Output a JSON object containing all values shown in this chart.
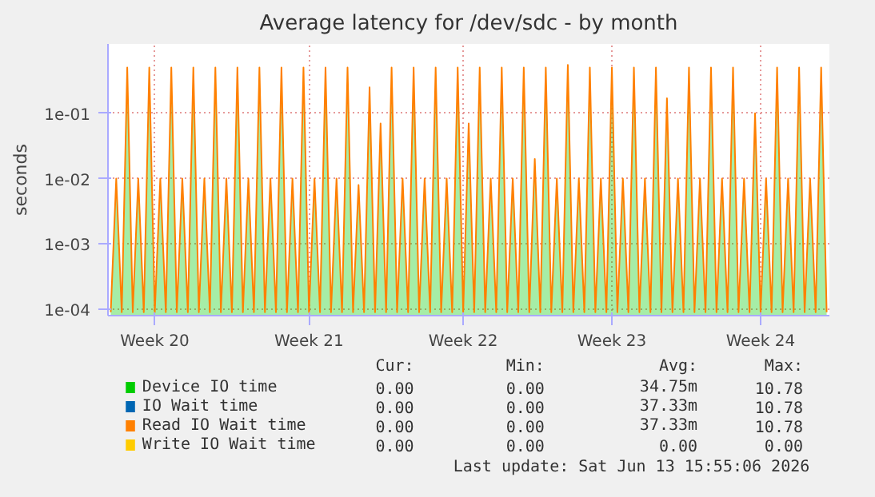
{
  "chart_data": {
    "type": "line",
    "title": "Average latency for /dev/sdc - by month",
    "ylabel": "seconds",
    "log": "y",
    "grid": true,
    "legend": "bottom",
    "line_style": "solid",
    "categories": [
      null,
      null,
      null,
      null,
      null,
      null,
      null,
      null,
      "Week 20",
      null,
      null,
      null,
      null,
      null,
      null,
      null,
      null,
      null,
      null,
      null,
      null,
      null,
      null,
      null,
      null,
      null,
      null,
      null,
      null,
      null,
      null,
      null,
      null,
      null,
      null,
      null,
      "Week 21",
      null,
      null,
      null,
      null,
      null,
      null,
      null,
      null,
      null,
      null,
      null,
      null,
      null,
      null,
      null,
      null,
      null,
      null,
      null,
      null,
      null,
      null,
      null,
      null,
      null,
      null,
      null,
      "Week 22",
      null,
      null,
      null,
      null,
      null,
      null,
      null,
      null,
      null,
      null,
      null,
      null,
      null,
      null,
      null,
      null,
      null,
      null,
      null,
      null,
      null,
      null,
      null,
      null,
      null,
      null,
      "Week 23",
      null,
      null,
      null,
      null,
      null,
      null,
      null,
      null,
      null,
      null,
      null,
      null,
      null,
      null,
      null,
      null,
      null,
      null,
      null,
      null,
      null,
      null,
      null,
      null,
      null,
      null,
      "Week 24",
      null,
      null,
      null,
      null,
      null,
      null,
      null,
      null,
      null,
      null,
      null,
      null
    ],
    "ylim": [
      8e-05,
      1.15
    ],
    "yticks": [
      {
        "value": 0.0001,
        "label": "1e-04"
      },
      {
        "value": 0.001,
        "label": "1e-03"
      },
      {
        "value": 0.01,
        "label": "1e-02"
      },
      {
        "value": 0.1,
        "label": "1e-01"
      }
    ],
    "series": [
      {
        "name": "Device IO time",
        "color": "#00cc00",
        "type": "area",
        "values": [
          9e-05,
          0.01,
          9e-05,
          0.5,
          9e-05,
          0.01,
          9e-05,
          0.5,
          9e-05,
          0.01,
          9e-05,
          0.5,
          9e-05,
          0.01,
          9e-05,
          0.5,
          9e-05,
          0.01,
          9e-05,
          0.5,
          9e-05,
          0.01,
          9e-05,
          0.5,
          9e-05,
          0.01,
          9e-05,
          0.5,
          9e-05,
          0.01,
          9e-05,
          0.5,
          9e-05,
          0.01,
          9e-05,
          0.5,
          9e-05,
          0.01,
          9e-05,
          0.5,
          9e-05,
          0.01,
          9e-05,
          0.5,
          9e-05,
          0.008,
          9e-05,
          0.25,
          9e-05,
          0.07,
          9e-05,
          0.5,
          9e-05,
          0.01,
          9e-05,
          0.5,
          9e-05,
          0.01,
          9e-05,
          0.5,
          9e-05,
          0.01,
          9e-05,
          0.5,
          9e-05,
          0.07,
          9e-05,
          0.5,
          9e-05,
          0.01,
          9e-05,
          0.5,
          9e-05,
          0.01,
          9e-05,
          0.5,
          9e-05,
          0.02,
          9e-05,
          0.5,
          9e-05,
          0.01,
          9e-05,
          0.55,
          9e-05,
          0.01,
          9e-05,
          0.5,
          9e-05,
          0.01,
          9e-05,
          0.5,
          9e-05,
          0.01,
          9e-05,
          0.5,
          9e-05,
          0.01,
          9e-05,
          0.5,
          9e-05,
          0.17,
          9e-05,
          0.01,
          9e-05,
          0.5,
          9e-05,
          0.01,
          9e-05,
          0.5,
          9e-05,
          0.01,
          9e-05,
          0.5,
          9e-05,
          0.01,
          9e-05,
          0.1,
          9e-05,
          0.01,
          9e-05,
          0.5,
          9e-05,
          0.01,
          9e-05,
          0.5,
          9e-05,
          0.01,
          9e-05,
          0.5,
          9e-05
        ]
      },
      {
        "name": "IO Wait time",
        "color": "#0066b3",
        "values": [
          null,
          null,
          null,
          null,
          null,
          null,
          null,
          null,
          null,
          null,
          null,
          null,
          null,
          null,
          null,
          null,
          null,
          null,
          null,
          null,
          null,
          null,
          null,
          null,
          null,
          null,
          null,
          null,
          null,
          null,
          null,
          null,
          null,
          null,
          null,
          null,
          null,
          null,
          null,
          null,
          null,
          null,
          null,
          null,
          null,
          null,
          null,
          null,
          null,
          null,
          null,
          null,
          null,
          null,
          null,
          null,
          null,
          null,
          null,
          null,
          null,
          null,
          null,
          null,
          null,
          null,
          null,
          null,
          null,
          null,
          null,
          null,
          null,
          null,
          null,
          null,
          null,
          null,
          null,
          null,
          null,
          null,
          null,
          null,
          null,
          null,
          null,
          null,
          null,
          null,
          null,
          null,
          null,
          null,
          null,
          null,
          null,
          null,
          null,
          null,
          null,
          null,
          null,
          null,
          null,
          null,
          null,
          null,
          null,
          null,
          null,
          null,
          null,
          null,
          null,
          null,
          null,
          null,
          null,
          null,
          null,
          null,
          null,
          null,
          null,
          null,
          null,
          null,
          null,
          null,
          null
        ]
      },
      {
        "name": "Read IO Wait time",
        "color": "#ff8000",
        "values": [
          9e-05,
          0.01,
          9e-05,
          0.5,
          9e-05,
          0.01,
          9e-05,
          0.5,
          9e-05,
          0.01,
          9e-05,
          0.5,
          9e-05,
          0.01,
          9e-05,
          0.5,
          9e-05,
          0.01,
          9e-05,
          0.5,
          9e-05,
          0.01,
          9e-05,
          0.5,
          9e-05,
          0.01,
          9e-05,
          0.5,
          9e-05,
          0.01,
          9e-05,
          0.5,
          9e-05,
          0.01,
          9e-05,
          0.5,
          9e-05,
          0.01,
          9e-05,
          0.5,
          9e-05,
          0.01,
          9e-05,
          0.5,
          9e-05,
          0.008,
          9e-05,
          0.25,
          9e-05,
          0.07,
          9e-05,
          0.5,
          9e-05,
          0.01,
          9e-05,
          0.5,
          9e-05,
          0.01,
          9e-05,
          0.5,
          9e-05,
          0.01,
          9e-05,
          0.5,
          9e-05,
          0.07,
          9e-05,
          0.5,
          9e-05,
          0.01,
          9e-05,
          0.5,
          9e-05,
          0.01,
          9e-05,
          0.5,
          9e-05,
          0.02,
          9e-05,
          0.5,
          9e-05,
          0.01,
          9e-05,
          0.55,
          9e-05,
          0.01,
          9e-05,
          0.5,
          9e-05,
          0.01,
          9e-05,
          0.5,
          9e-05,
          0.01,
          9e-05,
          0.5,
          9e-05,
          0.01,
          9e-05,
          0.5,
          9e-05,
          0.17,
          9e-05,
          0.01,
          9e-05,
          0.5,
          9e-05,
          0.01,
          9e-05,
          0.5,
          9e-05,
          0.01,
          9e-05,
          0.5,
          9e-05,
          0.01,
          9e-05,
          0.1,
          9e-05,
          0.01,
          9e-05,
          0.5,
          9e-05,
          0.01,
          9e-05,
          0.5,
          9e-05,
          0.01,
          9e-05,
          0.5,
          9e-05
        ]
      },
      {
        "name": "Write IO Wait time",
        "color": "#ffcc00",
        "values": [
          null,
          null,
          null,
          null,
          null,
          null,
          null,
          null,
          null,
          null,
          null,
          null,
          null,
          null,
          null,
          null,
          null,
          null,
          null,
          null,
          null,
          null,
          null,
          null,
          null,
          null,
          null,
          null,
          null,
          null,
          null,
          null,
          null,
          null,
          null,
          null,
          null,
          null,
          null,
          null,
          null,
          null,
          null,
          null,
          null,
          null,
          null,
          null,
          null,
          null,
          null,
          null,
          null,
          null,
          null,
          null,
          null,
          null,
          null,
          null,
          null,
          null,
          null,
          null,
          null,
          null,
          null,
          null,
          null,
          null,
          null,
          null,
          null,
          null,
          null,
          null,
          null,
          null,
          null,
          null,
          null,
          null,
          null,
          null,
          null,
          null,
          null,
          null,
          null,
          null,
          null,
          null,
          null,
          null,
          null,
          null,
          null,
          null,
          null,
          null,
          null,
          null,
          null,
          null,
          null,
          null,
          null,
          null,
          null,
          null,
          null,
          null,
          null,
          null,
          null,
          null,
          null,
          null,
          null,
          null,
          null,
          null,
          null,
          null,
          null,
          null,
          null,
          null,
          null,
          null,
          null
        ]
      }
    ],
    "annotations": [
      "Cur:",
      "Min:",
      "Avg:",
      "Max:",
      "0.00",
      "0.00",
      "34.75m",
      "10.78",
      "0.00",
      "0.00",
      "37.33m",
      "10.78",
      "0.00",
      "0.00",
      "37.33m",
      "10.78",
      "0.00",
      "0.00",
      "0.00",
      "0.00",
      "Last update: Sat Jun 13 15:55:06 2026"
    ]
  }
}
